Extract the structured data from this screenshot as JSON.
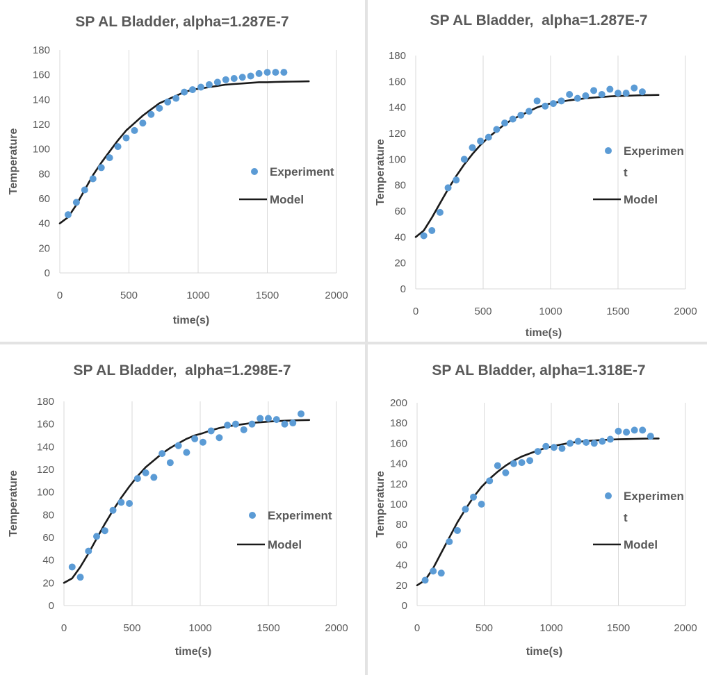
{
  "colors": {
    "experiment": "#5B9BD5",
    "model": "#1a1a1a",
    "grid": "#d9d9d9",
    "text": "#595959"
  },
  "chart_data": [
    {
      "type": "scatter",
      "title": "SP AL Bladder, alpha=1.287E-7",
      "xlabel": "time(s)",
      "ylabel": "Temperature",
      "xlim": [
        0,
        2000
      ],
      "ylim": [
        0,
        180
      ],
      "xticks": [
        0,
        500,
        1000,
        1500,
        2000
      ],
      "yticks": [
        0,
        20,
        40,
        60,
        80,
        100,
        120,
        140,
        160,
        180
      ],
      "grid": "vertical",
      "legend": [
        {
          "label": "Experiment",
          "kind": "marker"
        },
        {
          "label": "Model",
          "kind": "line"
        }
      ],
      "series": [
        {
          "name": "Experiment",
          "type": "scatter",
          "x": [
            60,
            120,
            180,
            240,
            300,
            360,
            420,
            480,
            540,
            600,
            660,
            720,
            780,
            840,
            900,
            960,
            1020,
            1080,
            1140,
            1200,
            1260,
            1320,
            1380,
            1440,
            1500,
            1560,
            1620
          ],
          "y": [
            47,
            57,
            67,
            76,
            85,
            93,
            102,
            109,
            115,
            121,
            128,
            133,
            138,
            141,
            146,
            148,
            150,
            152,
            154,
            156,
            157,
            158,
            159,
            161,
            162,
            162,
            162
          ]
        },
        {
          "name": "Model",
          "type": "line",
          "x": [
            0,
            60,
            120,
            180,
            240,
            300,
            360,
            420,
            480,
            540,
            600,
            660,
            720,
            780,
            840,
            900,
            960,
            1020,
            1080,
            1140,
            1200,
            1260,
            1320,
            1380,
            1440,
            1500,
            1560,
            1620,
            1680,
            1740,
            1800
          ],
          "y": [
            40,
            45,
            55,
            67,
            79,
            89,
            98,
            107,
            115,
            121,
            127,
            132,
            137,
            140,
            143,
            146,
            148,
            149,
            150,
            151,
            152,
            152.5,
            153,
            153.5,
            154,
            154,
            154.2,
            154.4,
            154.5,
            154.6,
            154.7
          ]
        }
      ]
    },
    {
      "type": "scatter",
      "title": "SP AL Bladder,  alpha=1.287E-7",
      "xlabel": "time(s)",
      "ylabel": "Temperature",
      "xlim": [
        0,
        2000
      ],
      "ylim": [
        0,
        180
      ],
      "xticks": [
        0,
        500,
        1000,
        1500,
        2000
      ],
      "yticks": [
        0,
        20,
        40,
        60,
        80,
        100,
        120,
        140,
        160,
        180
      ],
      "grid": "vertical",
      "legend": [
        {
          "label": "Experimen",
          "label2": "t",
          "kind": "marker"
        },
        {
          "label": "Model",
          "kind": "line"
        }
      ],
      "series": [
        {
          "name": "Experiment",
          "type": "scatter",
          "x": [
            60,
            120,
            180,
            240,
            300,
            360,
            420,
            480,
            540,
            600,
            660,
            720,
            780,
            840,
            900,
            960,
            1020,
            1080,
            1140,
            1200,
            1260,
            1320,
            1380,
            1440,
            1500,
            1560,
            1620,
            1680
          ],
          "y": [
            41,
            45,
            59,
            78,
            84,
            100,
            109,
            114,
            117,
            123,
            128,
            131,
            134,
            137,
            145,
            141,
            143,
            145,
            150,
            147,
            149,
            153,
            150,
            154,
            151,
            151,
            155,
            152
          ]
        },
        {
          "name": "Model",
          "type": "line",
          "x": [
            0,
            60,
            120,
            180,
            240,
            300,
            360,
            420,
            480,
            540,
            600,
            660,
            720,
            780,
            840,
            900,
            960,
            1020,
            1080,
            1140,
            1200,
            1260,
            1320,
            1380,
            1440,
            1500,
            1560,
            1620,
            1680,
            1740,
            1800
          ],
          "y": [
            40,
            45,
            55,
            66,
            77,
            87,
            96,
            104,
            111,
            117,
            122,
            127,
            131,
            134,
            137,
            140,
            142,
            143.5,
            144.5,
            145.5,
            146.3,
            147,
            147.6,
            148,
            148.5,
            148.8,
            149,
            149.2,
            149.4,
            149.5,
            149.6
          ]
        }
      ]
    },
    {
      "type": "scatter",
      "title": "SP AL Bladder,  alpha=1.298E-7",
      "xlabel": "time(s)",
      "ylabel": "Temperature",
      "xlim": [
        0,
        2000
      ],
      "ylim": [
        0,
        180
      ],
      "xticks": [
        0,
        500,
        1000,
        1500,
        2000
      ],
      "yticks": [
        0,
        20,
        40,
        60,
        80,
        100,
        120,
        140,
        160,
        180
      ],
      "grid": "vertical",
      "legend": [
        {
          "label": "Experiment",
          "kind": "marker"
        },
        {
          "label": "Model",
          "kind": "line"
        }
      ],
      "series": [
        {
          "name": "Experiment",
          "type": "scatter",
          "x": [
            60,
            120,
            180,
            240,
            300,
            360,
            420,
            480,
            540,
            600,
            660,
            720,
            780,
            840,
            900,
            960,
            1020,
            1080,
            1140,
            1200,
            1260,
            1320,
            1380,
            1440,
            1500,
            1560,
            1620,
            1680,
            1740
          ],
          "y": [
            34,
            25,
            48,
            61,
            66,
            84,
            91,
            90,
            112,
            117,
            113,
            134,
            126,
            141,
            135,
            147,
            144,
            154,
            148,
            159,
            160,
            155,
            160,
            165,
            165,
            164,
            160,
            161,
            169
          ]
        },
        {
          "name": "Model",
          "type": "line",
          "x": [
            0,
            60,
            120,
            180,
            240,
            300,
            360,
            420,
            480,
            540,
            600,
            660,
            720,
            780,
            840,
            900,
            960,
            1020,
            1080,
            1140,
            1200,
            1260,
            1320,
            1380,
            1440,
            1500,
            1560,
            1620,
            1680,
            1740,
            1800
          ],
          "y": [
            20,
            24,
            34,
            46,
            59,
            72,
            84,
            95,
            105,
            114,
            122,
            128,
            134,
            139,
            143,
            147,
            150,
            152,
            154.5,
            156.5,
            158,
            159,
            160,
            161,
            161.6,
            162.2,
            162.6,
            163,
            163.2,
            163.4,
            163.6
          ]
        }
      ]
    },
    {
      "type": "scatter",
      "title": "SP AL Bladder, alpha=1.318E-7",
      "xlabel": "time(s)",
      "ylabel": "Temperature",
      "xlim": [
        0,
        2000
      ],
      "ylim": [
        0,
        200
      ],
      "xticks": [
        0,
        500,
        1000,
        1500,
        2000
      ],
      "yticks": [
        0,
        20,
        40,
        60,
        80,
        100,
        120,
        140,
        160,
        180,
        200
      ],
      "grid": "vertical",
      "legend": [
        {
          "label": "Experimen",
          "label2": "t",
          "kind": "marker"
        },
        {
          "label": "Model",
          "kind": "line"
        }
      ],
      "series": [
        {
          "name": "Experiment",
          "type": "scatter",
          "x": [
            60,
            120,
            180,
            240,
            300,
            360,
            420,
            480,
            540,
            600,
            660,
            720,
            780,
            840,
            900,
            960,
            1020,
            1080,
            1140,
            1200,
            1260,
            1320,
            1380,
            1440,
            1500,
            1560,
            1620,
            1680,
            1740
          ],
          "y": [
            25,
            34,
            32,
            63,
            74,
            95,
            107,
            100,
            123,
            138,
            131,
            140,
            141,
            143,
            152,
            157,
            156,
            155,
            160,
            162,
            161,
            160,
            162,
            164,
            172,
            171,
            173,
            173,
            167
          ]
        },
        {
          "name": "Model",
          "type": "line",
          "x": [
            0,
            60,
            120,
            180,
            240,
            300,
            360,
            420,
            480,
            540,
            600,
            660,
            720,
            780,
            840,
            900,
            960,
            1020,
            1080,
            1140,
            1200,
            1260,
            1320,
            1380,
            1440,
            1500,
            1560,
            1620,
            1680,
            1740,
            1800
          ],
          "y": [
            20,
            25,
            37,
            52,
            67,
            82,
            95,
            107,
            117,
            125,
            132,
            138,
            143,
            147,
            150,
            153,
            155.5,
            157.5,
            159,
            160.5,
            161.5,
            162.2,
            162.8,
            163.3,
            163.7,
            164,
            164.2,
            164.4,
            164.6,
            164.7,
            164.8
          ]
        }
      ]
    }
  ]
}
